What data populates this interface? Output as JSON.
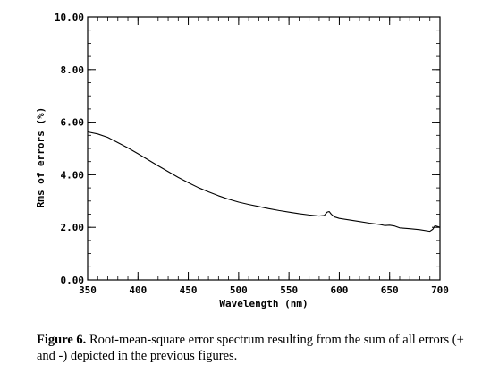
{
  "chart_data": {
    "type": "line",
    "xlabel": "Wavelength (nm)",
    "ylabel": "Rms of errors (%)",
    "xlim": [
      350,
      700
    ],
    "ylim": [
      0,
      10
    ],
    "x_ticks": [
      350,
      400,
      450,
      500,
      550,
      600,
      650,
      700
    ],
    "x_tick_labels": [
      "350",
      "400",
      "450",
      "500",
      "550",
      "600",
      "650",
      "700"
    ],
    "y_ticks": [
      0,
      2,
      4,
      6,
      8,
      10
    ],
    "y_tick_labels": [
      "0.00",
      "2.00",
      "4.00",
      "6.00",
      "8.00",
      "10.00"
    ],
    "x_minor_step": 10,
    "y_minor_step": 0.5,
    "grid": false,
    "legend": "none",
    "line_color": "#000000",
    "series": [
      {
        "x": [
          350,
          360,
          370,
          380,
          390,
          400,
          410,
          420,
          430,
          440,
          450,
          460,
          470,
          480,
          490,
          500,
          510,
          520,
          530,
          540,
          550,
          560,
          570,
          580,
          585,
          588,
          590,
          592,
          595,
          600,
          610,
          620,
          630,
          640,
          645,
          650,
          655,
          660,
          670,
          680,
          690,
          693,
          695,
          697,
          700
        ],
        "y": [
          5.63,
          5.55,
          5.42,
          5.22,
          5.02,
          4.8,
          4.57,
          4.34,
          4.12,
          3.9,
          3.7,
          3.51,
          3.35,
          3.2,
          3.07,
          2.96,
          2.87,
          2.79,
          2.71,
          2.64,
          2.58,
          2.52,
          2.47,
          2.43,
          2.45,
          2.58,
          2.6,
          2.5,
          2.4,
          2.34,
          2.28,
          2.22,
          2.16,
          2.11,
          2.07,
          2.08,
          2.05,
          1.98,
          1.95,
          1.91,
          1.85,
          1.93,
          2.06,
          2.04,
          2.0
        ]
      }
    ]
  },
  "caption": {
    "label": "Figure 6.",
    "text": " Root-mean-square error spectrum resulting from the sum of all errors (+ and -) depicted in the previous figures."
  }
}
